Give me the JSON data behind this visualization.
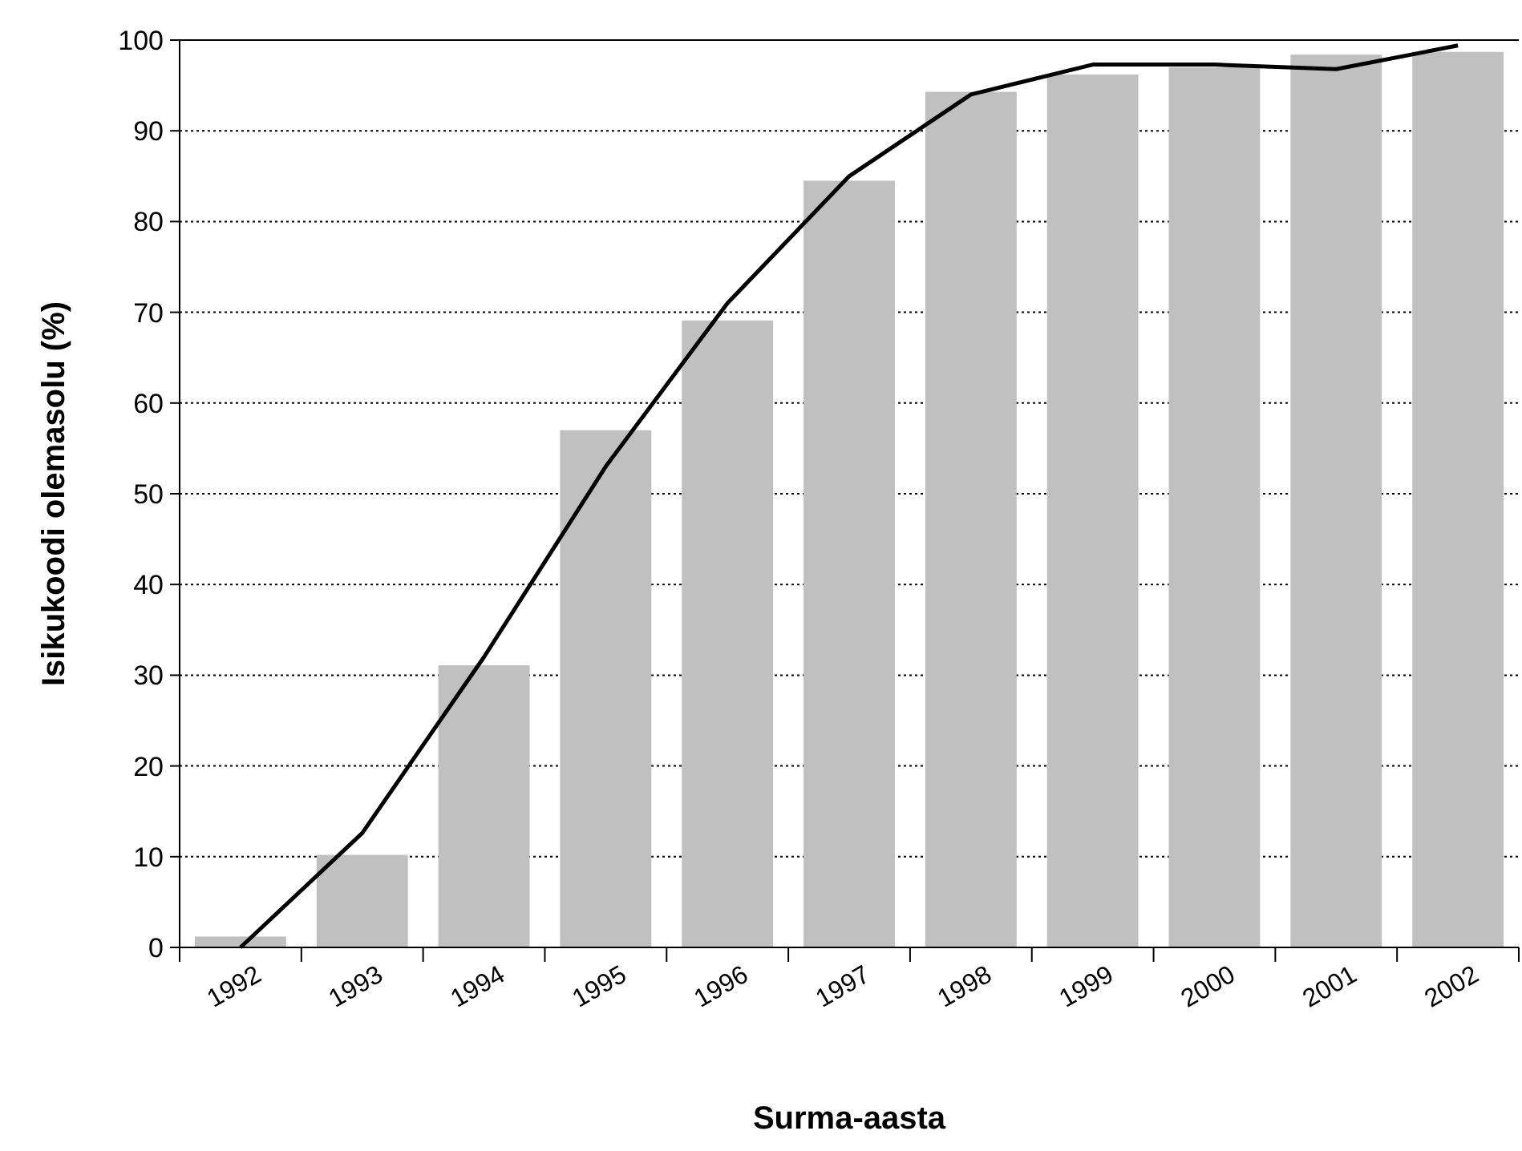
{
  "chart_data": {
    "type": "bar",
    "xlabel": "Surma-aasta",
    "ylabel": "Isikukoodi olemasolu (%)",
    "categories": [
      "1992",
      "1993",
      "1994",
      "1995",
      "1996",
      "1997",
      "1998",
      "1999",
      "2000",
      "2001",
      "2002"
    ],
    "series": [
      {
        "color": "#c0c0c0",
        "values": [
          1.2,
          10.2,
          31.1,
          57.0,
          69.1,
          84.5,
          94.3,
          96.2,
          97.0,
          98.4,
          98.7
        ]
      },
      {
        "type": "line",
        "color": "#000000",
        "values": [
          0,
          12.6,
          32,
          53,
          71,
          85,
          94,
          97.3,
          97.3,
          96.8,
          99.4
        ]
      }
    ],
    "ylim": [
      0,
      100
    ],
    "yticks": [
      0,
      10,
      20,
      30,
      40,
      50,
      60,
      70,
      80,
      90,
      100
    ],
    "grid": "y",
    "marker": "none",
    "line_style": "solid"
  }
}
